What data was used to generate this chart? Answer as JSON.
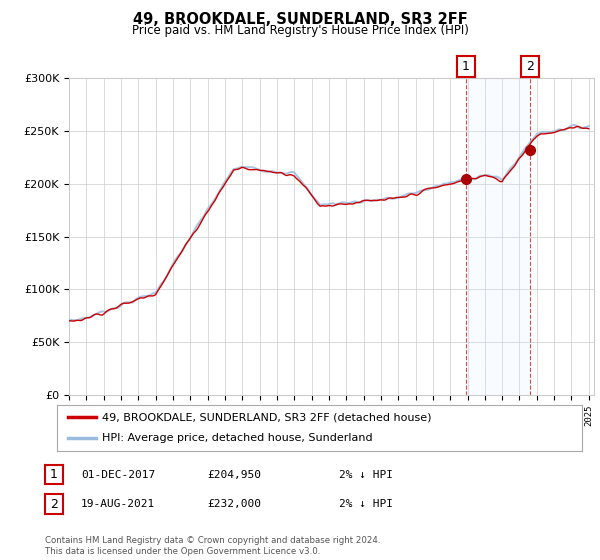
{
  "title": "49, BROOKDALE, SUNDERLAND, SR3 2FF",
  "subtitle": "Price paid vs. HM Land Registry's House Price Index (HPI)",
  "legend_line1": "49, BROOKDALE, SUNDERLAND, SR3 2FF (detached house)",
  "legend_line2": "HPI: Average price, detached house, Sunderland",
  "annotation1_label": "1",
  "annotation1_date": "01-DEC-2017",
  "annotation1_price": "£204,950",
  "annotation1_hpi": "2% ↓ HPI",
  "annotation2_label": "2",
  "annotation2_date": "19-AUG-2021",
  "annotation2_price": "£232,000",
  "annotation2_hpi": "2% ↓ HPI",
  "footer": "Contains HM Land Registry data © Crown copyright and database right 2024.\nThis data is licensed under the Open Government Licence v3.0.",
  "line1_color": "#cc0000",
  "line2_color": "#99bbdd",
  "marker_color": "#aa0000",
  "annotation_box_color": "#cc0000",
  "shaded_region_color": "#ddeeff",
  "vline_color": "#cc0000",
  "ylim": [
    0,
    300000
  ],
  "yticks": [
    0,
    50000,
    100000,
    150000,
    200000,
    250000,
    300000
  ],
  "ytick_labels": [
    "£0",
    "£50K",
    "£100K",
    "£150K",
    "£200K",
    "£250K",
    "£300K"
  ],
  "start_year": 1995,
  "end_year": 2025,
  "pt1_year": 2017.917,
  "pt1_price": 204950,
  "pt2_year": 2021.583,
  "pt2_price": 232000
}
